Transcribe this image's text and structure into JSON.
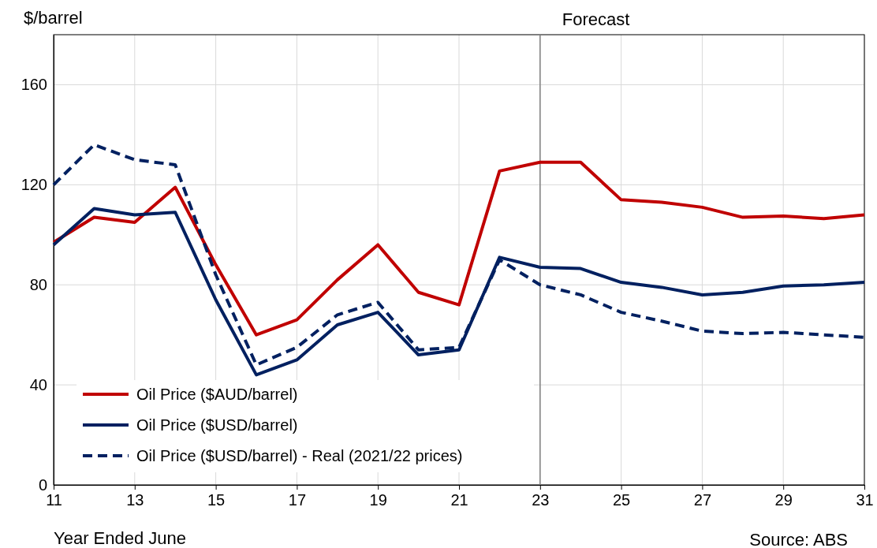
{
  "chart_data": {
    "type": "line",
    "ylabel": "$/barrel",
    "xlabel": "Year Ended June",
    "x": [
      11,
      12,
      13,
      14,
      15,
      16,
      17,
      18,
      19,
      20,
      21,
      22,
      23,
      24,
      25,
      26,
      27,
      28,
      29,
      30,
      31
    ],
    "xlim": [
      11,
      31
    ],
    "xticks": [
      11,
      13,
      15,
      17,
      19,
      21,
      23,
      25,
      27,
      29,
      31
    ],
    "ylim": [
      0,
      180
    ],
    "yticks": [
      0,
      40,
      80,
      120,
      160
    ],
    "grid": true,
    "legend": "bottom left",
    "marker": "none",
    "series": [
      {
        "name": "Oil Price ($AUD/barrel)",
        "color": "#c00000",
        "line_style": "solid",
        "values": [
          97,
          107,
          105,
          119,
          88,
          60,
          66,
          82,
          96,
          77,
          72,
          125.5,
          129,
          129,
          114,
          113,
          111,
          107,
          107.5,
          106.5,
          108
        ]
      },
      {
        "name": "Oil Price ($USD/barrel)",
        "color": "#002060",
        "line_style": "solid",
        "values": [
          96,
          110.5,
          108,
          109,
          74,
          44,
          50,
          64,
          69,
          52,
          54,
          91,
          87,
          86.5,
          81,
          79,
          76,
          77,
          79.5,
          80,
          81
        ]
      },
      {
        "name": "Oil Price ($USD/barrel) - Real (2021/22 prices)",
        "color": "#002060",
        "line_style": "dashed",
        "values": [
          120,
          136,
          130,
          128,
          84,
          48,
          55,
          68,
          73,
          54,
          55,
          90,
          80,
          76,
          69,
          65.5,
          61.5,
          60.5,
          61,
          60,
          59
        ]
      }
    ],
    "ref_lines": [
      {
        "axis": "x",
        "value": 23,
        "label": "Forecast",
        "color": "#7f7f7f"
      }
    ],
    "annotations": [
      "Source: ABS"
    ]
  }
}
